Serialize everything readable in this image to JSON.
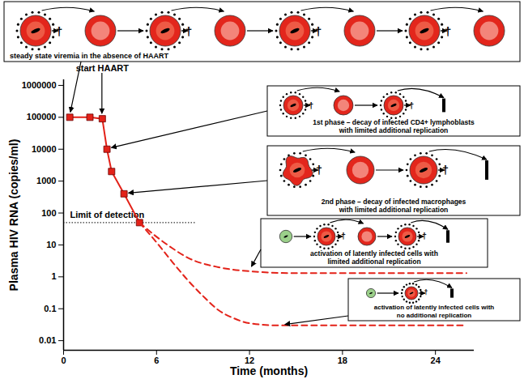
{
  "chart_data": {
    "type": "line",
    "x_label": "Time (months)",
    "y_label": "Plasma HIV RNA (copies/ml)",
    "xlim": [
      0,
      26.5
    ],
    "xticks": [
      0,
      6,
      12,
      18,
      24
    ],
    "ylim": [
      0.005,
      1500000
    ],
    "yticks": [
      0.01,
      0.1,
      1,
      10,
      100,
      1000,
      10000,
      100000,
      1000000
    ],
    "log": "y",
    "grid": false,
    "series": [
      {
        "x": [
          0.4,
          1.7,
          2.5,
          2.8,
          3.1,
          3.9,
          4.9
        ],
        "values": [
          100000,
          100000,
          90000,
          10000,
          2000,
          400,
          50
        ],
        "color": "#e32219",
        "marker": "square",
        "line_style": "solid"
      },
      {
        "x": [
          4.9,
          6,
          7,
          8,
          10,
          12,
          15,
          20,
          26
        ],
        "values": [
          50,
          18,
          8,
          4,
          2,
          1.5,
          1.3,
          1.3,
          1.3
        ],
        "color": "#e32219",
        "marker": "none",
        "line_style": "dashed"
      },
      {
        "x": [
          4.9,
          6,
          7,
          8,
          9,
          10,
          11,
          12,
          14,
          20,
          26
        ],
        "values": [
          50,
          12,
          3,
          0.8,
          0.25,
          0.09,
          0.05,
          0.035,
          0.03,
          0.03,
          0.03
        ],
        "color": "#e32219",
        "marker": "none",
        "line_style": "dashed"
      }
    ],
    "limit_line": {
      "label": "Limit of detection",
      "value": 50,
      "x": [
        0,
        8.5
      ]
    },
    "start_label": {
      "text": "start HAART",
      "series": 0,
      "point": 2
    },
    "death_mark": "†",
    "callouts": [
      {
        "lines": [
          "steady state viremia in the absence of HAART"
        ],
        "series": 0,
        "point": 0
      },
      {
        "lines": [
          "1st phase – decay of infected CD4+ lymphoblasts",
          "with limited additional replication"
        ],
        "series": 0,
        "point": 3
      },
      {
        "lines": [
          "2nd phase – decay of infected macrophages",
          "with limited additional replication"
        ],
        "series": 0,
        "point": 5
      },
      {
        "lines": [
          "activation of latently infected cells with",
          "limited additional replication"
        ],
        "series": 1,
        "point": 5
      },
      {
        "lines": [
          "activation of latently infected cells with",
          "no additional replication"
        ],
        "series": 2,
        "point": 8
      }
    ]
  }
}
